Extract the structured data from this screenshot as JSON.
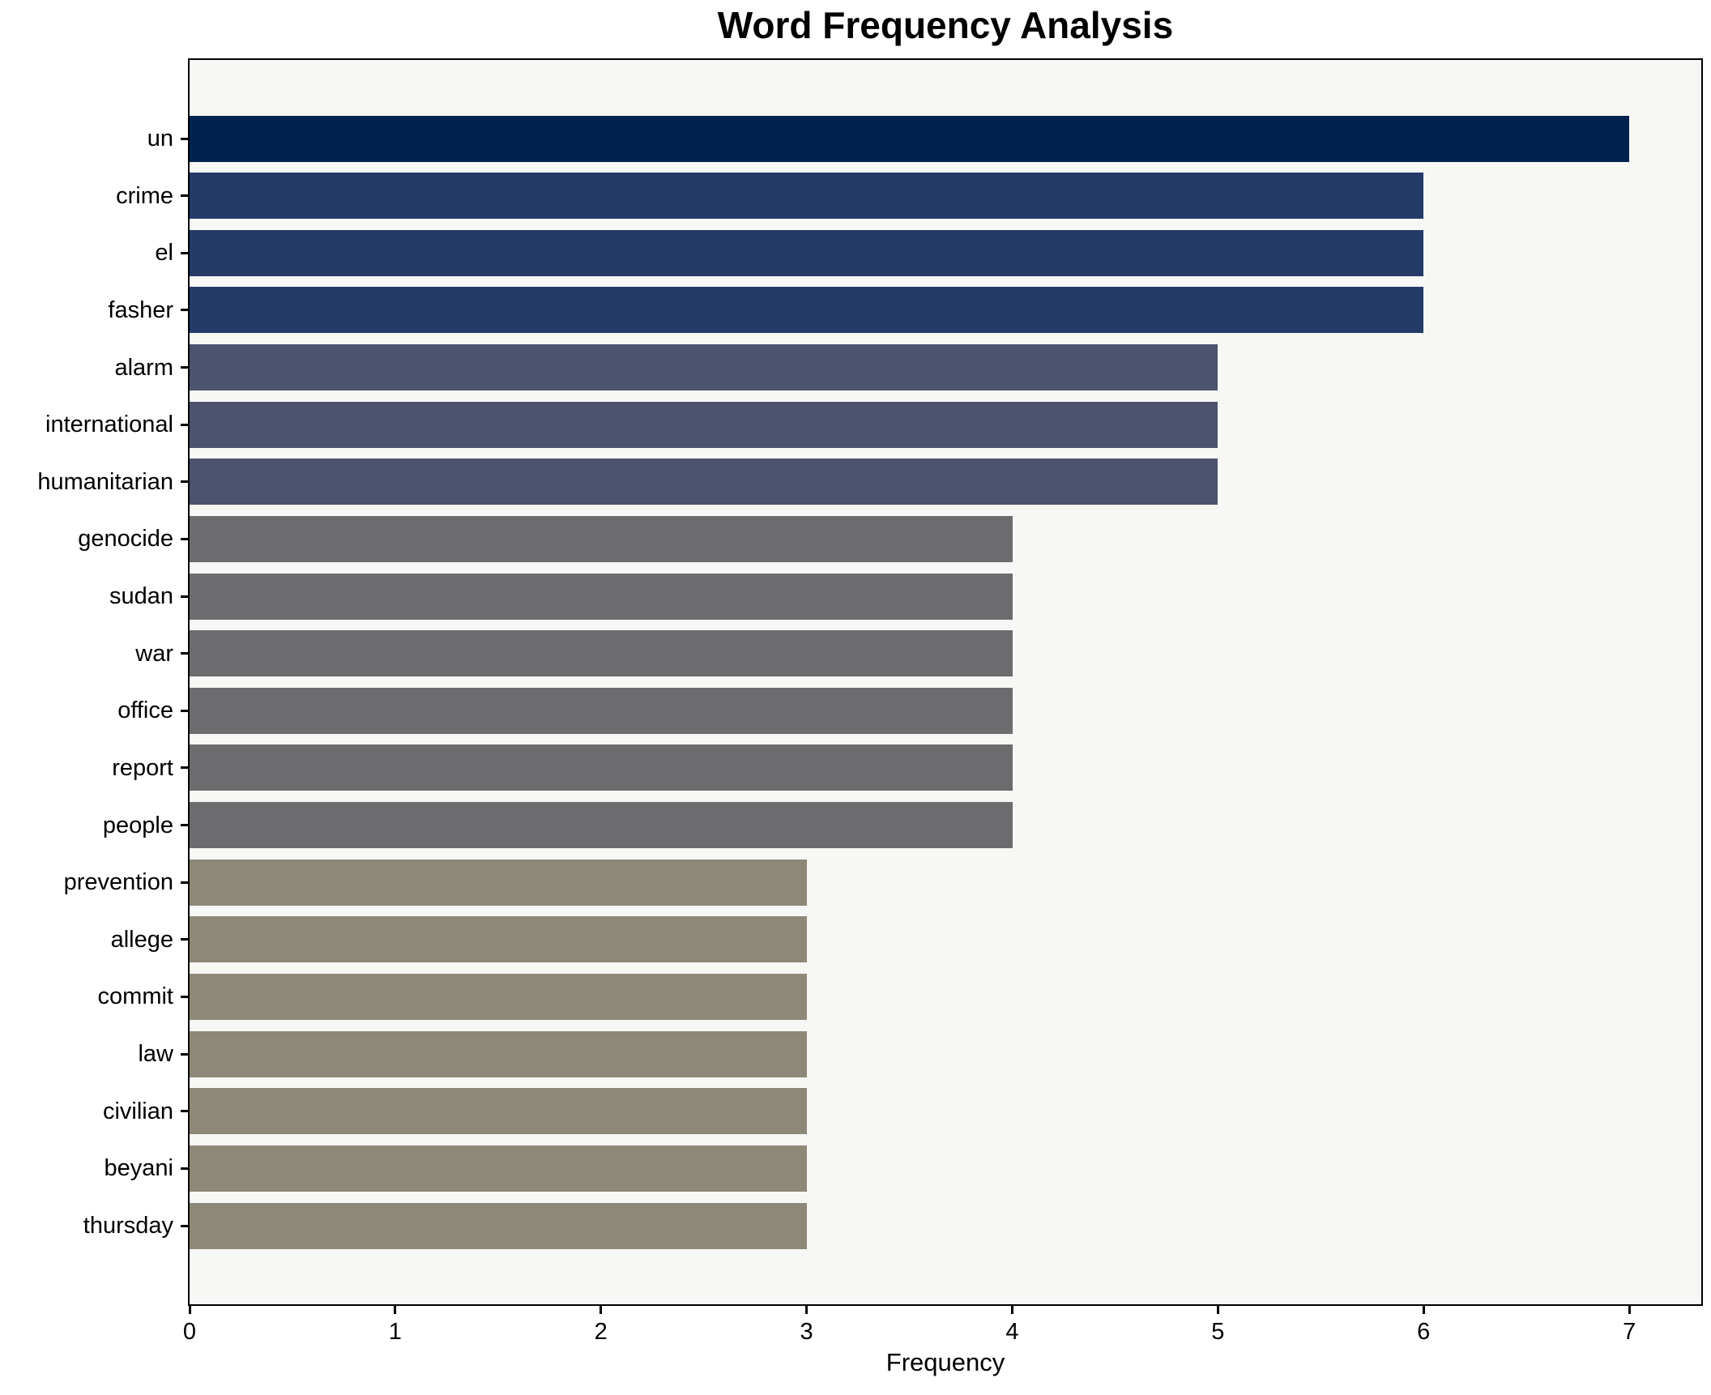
{
  "chart_data": {
    "type": "bar",
    "orientation": "horizontal",
    "title": "Word Frequency Analysis",
    "xlabel": "Frequency",
    "ylabel": "",
    "categories": [
      "un",
      "crime",
      "el",
      "fasher",
      "alarm",
      "international",
      "humanitarian",
      "genocide",
      "sudan",
      "war",
      "office",
      "report",
      "people",
      "prevention",
      "allege",
      "commit",
      "law",
      "civilian",
      "beyani",
      "thursday"
    ],
    "values": [
      7,
      6,
      6,
      6,
      5,
      5,
      5,
      4,
      4,
      4,
      4,
      4,
      4,
      3,
      3,
      3,
      3,
      3,
      3,
      3
    ],
    "xlim": [
      0,
      7.35
    ],
    "xticks": [
      0,
      1,
      2,
      3,
      4,
      5,
      6,
      7
    ],
    "grid": false,
    "legend": null,
    "colors_by_value": {
      "7": "#00224e",
      "6": "#243b6a",
      "5": "#4b536e",
      "4": "#6c6c6e",
      "3": "#8e8878"
    },
    "plot_background": "#f7f7f5",
    "figure_background": "#ffffff",
    "spine_color": "#000000",
    "text_color": "#000000"
  }
}
